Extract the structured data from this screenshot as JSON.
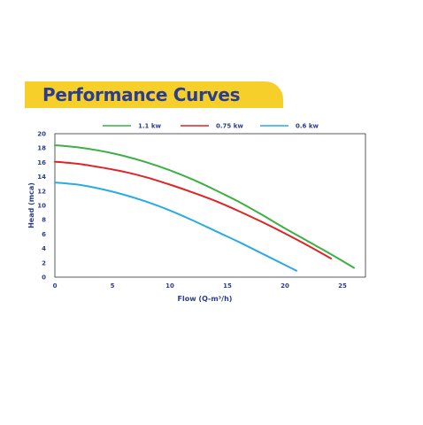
{
  "header": {
    "title": "Performance Curves",
    "banner_color": "#f7cf2b",
    "text_color": "#2b3d8f"
  },
  "chart_data": {
    "type": "line",
    "title": "Performance Curves",
    "xlabel": "Flow (Q-m³/h)",
    "ylabel": "Head (mca)",
    "xlim": [
      0,
      27
    ],
    "ylim": [
      0,
      20
    ],
    "xticks": [
      0,
      5,
      10,
      15,
      20,
      25
    ],
    "yticks": [
      0,
      2,
      4,
      6,
      8,
      10,
      12,
      14,
      16,
      18,
      20
    ],
    "xtick_labels": [
      "0",
      "5",
      "10",
      "15",
      "20",
      "25"
    ],
    "ytick_labels": [
      "0",
      "2",
      "4",
      "6",
      "8",
      "10",
      "12",
      "14",
      "16",
      "18",
      "20"
    ],
    "grid": false,
    "legend_position": "top",
    "series": [
      {
        "name": "1.1 kw",
        "color": "#3cb043",
        "x": [
          0,
          2,
          4,
          6,
          8,
          10,
          12,
          14,
          16,
          18,
          20,
          22,
          24,
          26
        ],
        "y": [
          18.4,
          18.1,
          17.6,
          16.9,
          16.0,
          14.9,
          13.6,
          12.1,
          10.5,
          8.7,
          6.8,
          5.0,
          3.2,
          1.3
        ]
      },
      {
        "name": "0.75 kw",
        "color": "#e02424",
        "x": [
          0,
          2,
          4,
          6,
          8,
          10,
          12,
          14,
          16,
          18,
          20,
          22,
          24
        ],
        "y": [
          16.1,
          15.8,
          15.3,
          14.7,
          13.9,
          12.9,
          11.8,
          10.6,
          9.2,
          7.7,
          6.1,
          4.4,
          2.6
        ]
      },
      {
        "name": "0.6 kw",
        "color": "#29abe2",
        "x": [
          0,
          2,
          4,
          6,
          8,
          10,
          12,
          14,
          16,
          18,
          20,
          21
        ],
        "y": [
          13.2,
          12.9,
          12.3,
          11.5,
          10.5,
          9.3,
          7.9,
          6.4,
          4.9,
          3.3,
          1.7,
          0.9
        ]
      }
    ]
  }
}
